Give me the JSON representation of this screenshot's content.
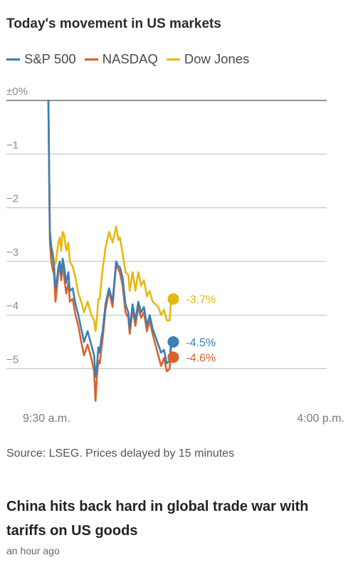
{
  "chart_title": "Today's movement in US markets",
  "legend": [
    {
      "label": "S&P 500",
      "color": "#3a7fb5"
    },
    {
      "label": "NASDAQ",
      "color": "#d9622b"
    },
    {
      "label": "Dow Jones",
      "color": "#e8b812"
    }
  ],
  "source": "Source: LSEG. Prices delayed by 15 minutes",
  "article": {
    "headline": "China hits back hard in global trade war with tariffs on US goods",
    "timestamp": "an hour ago"
  },
  "chart_data": {
    "type": "line",
    "title": "Today's movement in US markets",
    "xlabel": "",
    "ylabel": "",
    "x_tick_labels": [
      "9:30 a.m.",
      "4:00 p.m."
    ],
    "x_unit": "minutes after open",
    "xlim": [
      0,
      390
    ],
    "ylim": [
      -5.5,
      0
    ],
    "y_tick_values": [
      0,
      -1,
      -2,
      -3,
      -4,
      -5
    ],
    "y_tick_labels": [
      "±0%",
      "−1",
      "−2",
      "−3",
      "−4",
      "−5"
    ],
    "grid": true,
    "legend_position": "top-left",
    "series": [
      {
        "name": "S&P 500",
        "color": "#3a7fb5",
        "end_label": "-4.5%",
        "x": [
          0,
          2,
          4,
          6,
          8,
          10,
          12,
          14,
          16,
          18,
          20,
          22,
          25,
          28,
          30,
          34,
          38,
          42,
          46,
          50,
          55,
          60,
          64,
          66,
          68,
          70,
          72,
          74,
          76,
          80,
          85,
          90,
          95,
          98,
          100,
          104,
          108,
          112,
          114,
          118,
          122,
          126,
          130,
          134,
          138,
          142,
          146,
          150,
          154,
          158,
          162,
          166,
          170,
          172
        ],
        "y": [
          0,
          -2.4,
          -2.75,
          -2.9,
          -3.1,
          -3.5,
          -3.35,
          -3.1,
          -3.0,
          -3.25,
          -2.95,
          -3.1,
          -3.4,
          -3.2,
          -3.55,
          -3.5,
          -3.8,
          -4.0,
          -4.25,
          -4.5,
          -4.3,
          -4.55,
          -4.75,
          -5.15,
          -4.95,
          -4.6,
          -4.7,
          -4.45,
          -4.3,
          -3.8,
          -3.5,
          -3.75,
          -3.0,
          -3.1,
          -3.1,
          -3.3,
          -3.8,
          -3.95,
          -4.25,
          -3.8,
          -4.1,
          -3.75,
          -3.95,
          -3.85,
          -4.2,
          -4.0,
          -4.25,
          -4.4,
          -4.55,
          -4.7,
          -4.65,
          -4.9,
          -4.85,
          -4.5
        ]
      },
      {
        "name": "NASDAQ",
        "color": "#d9622b",
        "end_label": "-4.6%",
        "x": [
          0,
          2,
          4,
          6,
          8,
          10,
          12,
          14,
          16,
          18,
          20,
          22,
          25,
          28,
          30,
          34,
          38,
          42,
          46,
          50,
          55,
          60,
          64,
          66,
          68,
          70,
          72,
          74,
          76,
          80,
          85,
          90,
          95,
          98,
          100,
          104,
          108,
          112,
          114,
          118,
          122,
          126,
          130,
          134,
          138,
          142,
          146,
          150,
          154,
          158,
          162,
          166,
          170,
          172
        ],
        "y": [
          0,
          -2.6,
          -3.0,
          -3.15,
          -3.25,
          -3.75,
          -3.5,
          -3.2,
          -3.1,
          -3.35,
          -3.05,
          -3.3,
          -3.6,
          -3.4,
          -3.75,
          -3.7,
          -4.0,
          -4.2,
          -4.5,
          -4.75,
          -4.55,
          -4.8,
          -5.05,
          -5.6,
          -5.15,
          -4.85,
          -4.9,
          -4.65,
          -4.45,
          -3.9,
          -3.55,
          -3.85,
          -3.05,
          -3.15,
          -3.2,
          -3.45,
          -3.95,
          -4.05,
          -4.35,
          -3.9,
          -4.2,
          -3.85,
          -4.05,
          -3.95,
          -4.3,
          -4.1,
          -4.35,
          -4.55,
          -4.75,
          -4.95,
          -4.8,
          -5.05,
          -5.0,
          -4.6
        ]
      },
      {
        "name": "Dow Jones",
        "color": "#e8b812",
        "end_label": "-3.7%",
        "x": [
          0,
          2,
          4,
          6,
          8,
          10,
          12,
          14,
          16,
          18,
          20,
          22,
          25,
          28,
          30,
          34,
          38,
          42,
          46,
          50,
          55,
          60,
          64,
          66,
          68,
          70,
          72,
          74,
          76,
          80,
          85,
          90,
          95,
          98,
          100,
          104,
          108,
          112,
          114,
          118,
          122,
          126,
          130,
          134,
          138,
          142,
          146,
          150,
          154,
          158,
          162,
          166,
          170,
          172
        ],
        "y": [
          0,
          -2.45,
          -2.7,
          -2.8,
          -3.0,
          -3.05,
          -2.85,
          -2.65,
          -2.55,
          -2.8,
          -2.45,
          -2.5,
          -2.8,
          -2.65,
          -3.0,
          -3.1,
          -3.3,
          -3.6,
          -3.75,
          -3.95,
          -3.75,
          -4.0,
          -4.1,
          -4.3,
          -4.05,
          -3.7,
          -3.7,
          -3.4,
          -3.15,
          -2.75,
          -2.45,
          -2.65,
          -2.35,
          -2.6,
          -2.55,
          -2.85,
          -3.2,
          -3.25,
          -3.55,
          -3.2,
          -3.55,
          -3.2,
          -3.45,
          -3.35,
          -3.65,
          -3.55,
          -3.75,
          -3.8,
          -3.85,
          -4.0,
          -3.9,
          -4.1,
          -4.1,
          -3.7
        ]
      }
    ]
  }
}
